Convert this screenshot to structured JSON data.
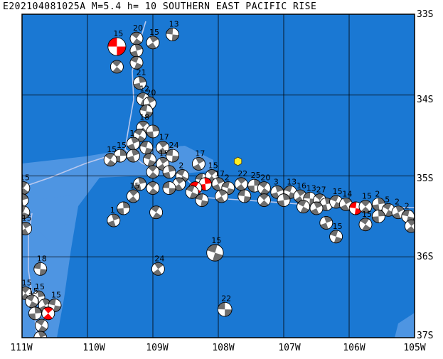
{
  "title": "E202104081025A M=5.4 h= 10 SOUTHERN EAST PACIFIC RISE",
  "lat_labels": [
    "33S",
    "34S",
    "35S",
    "36S",
    "37S"
  ],
  "lon_labels": [
    "111W",
    "110W",
    "109W",
    "108W",
    "107W",
    "106W",
    "105W"
  ],
  "colors": {
    "ocean": "#1a78d3",
    "shallow": "#4e95e2",
    "grid": "#000000",
    "ridge": "#b8c8ee",
    "event": "#ffee22",
    "compression_highlight": "#ff0000",
    "compression": "#6e6e6e"
  },
  "icons": {
    "mechanism": "focal-mechanism-beachball",
    "event": "epicenter-hexagon"
  },
  "event": {
    "lon": -107.7,
    "lat": -34.82
  },
  "focal_mechanisms": [
    {
      "lon": -109.55,
      "lat": -33.4,
      "mag": "15",
      "hl": true,
      "s": 1.4
    },
    {
      "lon": -109.25,
      "lat": -33.3,
      "mag": "20"
    },
    {
      "lon": -109.25,
      "lat": -33.45,
      "mag": ""
    },
    {
      "lon": -109.25,
      "lat": -33.6,
      "mag": ""
    },
    {
      "lon": -109.0,
      "lat": -33.35,
      "mag": "15"
    },
    {
      "lon": -108.7,
      "lat": -33.25,
      "mag": "13"
    },
    {
      "lon": -109.55,
      "lat": -33.65,
      "mag": ""
    },
    {
      "lon": -109.2,
      "lat": -33.85,
      "mag": "21"
    },
    {
      "lon": -109.15,
      "lat": -34.05,
      "mag": "12"
    },
    {
      "lon": -109.05,
      "lat": -34.1,
      "mag": "20"
    },
    {
      "lon": -109.1,
      "lat": -34.2,
      "mag": ""
    },
    {
      "lon": -109.15,
      "lat": -34.4,
      "mag": "18"
    },
    {
      "lon": -109.0,
      "lat": -34.45,
      "mag": ""
    },
    {
      "lon": -109.2,
      "lat": -34.5,
      "mag": ""
    },
    {
      "lon": -109.3,
      "lat": -34.6,
      "mag": "1"
    },
    {
      "lon": -109.1,
      "lat": -34.65,
      "mag": ""
    },
    {
      "lon": -108.85,
      "lat": -34.65,
      "mag": "17"
    },
    {
      "lon": -109.5,
      "lat": -34.75,
      "mag": "15"
    },
    {
      "lon": -109.65,
      "lat": -34.8,
      "mag": "15"
    },
    {
      "lon": -109.3,
      "lat": -34.75,
      "mag": ""
    },
    {
      "lon": -109.05,
      "lat": -34.8,
      "mag": ""
    },
    {
      "lon": -108.85,
      "lat": -34.85,
      "mag": "15"
    },
    {
      "lon": -108.7,
      "lat": -34.75,
      "mag": "24"
    },
    {
      "lon": -109.0,
      "lat": -34.95,
      "mag": ""
    },
    {
      "lon": -108.75,
      "lat": -34.95,
      "mag": ""
    },
    {
      "lon": -108.55,
      "lat": -35.0,
      "mag": "2"
    },
    {
      "lon": -108.3,
      "lat": -34.85,
      "mag": "17"
    },
    {
      "lon": -108.25,
      "lat": -35.05,
      "mag": ""
    },
    {
      "lon": -108.1,
      "lat": -35.0,
      "mag": "15"
    },
    {
      "lon": -108.2,
      "lat": -35.1,
      "mag": "",
      "hl": true
    },
    {
      "lon": -108.35,
      "lat": -35.15,
      "mag": "",
      "hl": true
    },
    {
      "lon": -108.0,
      "lat": -35.1,
      "mag": "17"
    },
    {
      "lon": -107.85,
      "lat": -35.15,
      "mag": "2"
    },
    {
      "lon": -107.65,
      "lat": -35.1,
      "mag": "22"
    },
    {
      "lon": -107.45,
      "lat": -35.12,
      "mag": "25"
    },
    {
      "lon": -107.3,
      "lat": -35.15,
      "mag": "20"
    },
    {
      "lon": -107.1,
      "lat": -35.2,
      "mag": "3"
    },
    {
      "lon": -106.9,
      "lat": -35.2,
      "mag": "13"
    },
    {
      "lon": -106.75,
      "lat": -35.25,
      "mag": "16"
    },
    {
      "lon": -106.6,
      "lat": -35.28,
      "mag": "13"
    },
    {
      "lon": -106.45,
      "lat": -35.3,
      "mag": "27"
    },
    {
      "lon": -106.35,
      "lat": -35.35,
      "mag": ""
    },
    {
      "lon": -106.2,
      "lat": -35.32,
      "mag": "15"
    },
    {
      "lon": -106.05,
      "lat": -35.35,
      "mag": "14"
    },
    {
      "lon": -105.9,
      "lat": -35.4,
      "mag": "",
      "hl": true
    },
    {
      "lon": -105.75,
      "lat": -35.38,
      "mag": "15"
    },
    {
      "lon": -105.55,
      "lat": -35.35,
      "mag": "2"
    },
    {
      "lon": -105.4,
      "lat": -35.42,
      "mag": "5"
    },
    {
      "lon": -105.25,
      "lat": -35.45,
      "mag": "2"
    },
    {
      "lon": -105.1,
      "lat": -35.5,
      "mag": "2"
    },
    {
      "lon": -105.05,
      "lat": -35.62,
      "mag": ""
    },
    {
      "lon": -105.55,
      "lat": -35.5,
      "mag": ""
    },
    {
      "lon": -105.75,
      "lat": -35.6,
      "mag": "15"
    },
    {
      "lon": -106.35,
      "lat": -35.58,
      "mag": ""
    },
    {
      "lon": -106.2,
      "lat": -35.75,
      "mag": "15"
    },
    {
      "lon": -108.6,
      "lat": -35.1,
      "mag": ""
    },
    {
      "lon": -108.75,
      "lat": -35.15,
      "mag": ""
    },
    {
      "lon": -109.0,
      "lat": -35.15,
      "mag": ""
    },
    {
      "lon": -109.2,
      "lat": -35.1,
      "mag": ""
    },
    {
      "lon": -108.4,
      "lat": -35.2,
      "mag": ""
    },
    {
      "lon": -107.95,
      "lat": -35.25,
      "mag": ""
    },
    {
      "lon": -107.6,
      "lat": -35.25,
      "mag": ""
    },
    {
      "lon": -107.3,
      "lat": -35.3,
      "mag": ""
    },
    {
      "lon": -107.0,
      "lat": -35.3,
      "mag": ""
    },
    {
      "lon": -106.7,
      "lat": -35.38,
      "mag": ""
    },
    {
      "lon": -106.5,
      "lat": -35.4,
      "mag": ""
    },
    {
      "lon": -108.25,
      "lat": -35.3,
      "mag": ""
    },
    {
      "lon": -109.3,
      "lat": -35.25,
      "mag": "15"
    },
    {
      "lon": -109.45,
      "lat": -35.4,
      "mag": ""
    },
    {
      "lon": -108.95,
      "lat": -35.45,
      "mag": ""
    },
    {
      "lon": -109.6,
      "lat": -35.55,
      "mag": "1"
    },
    {
      "lon": -108.05,
      "lat": -35.95,
      "mag": "15",
      "s": 1.3
    },
    {
      "lon": -108.92,
      "lat": -36.15,
      "mag": "24"
    },
    {
      "lon": -107.9,
      "lat": -36.65,
      "mag": "22",
      "s": 1.1
    },
    {
      "lon": -110.98,
      "lat": -35.15,
      "mag": "15"
    },
    {
      "lon": -111.0,
      "lat": -35.3,
      "mag": ""
    },
    {
      "lon": -110.98,
      "lat": -35.45,
      "mag": ""
    },
    {
      "lon": -110.95,
      "lat": -35.65,
      "mag": "15"
    },
    {
      "lon": -110.72,
      "lat": -36.15,
      "mag": "18"
    },
    {
      "lon": -110.95,
      "lat": -36.45,
      "mag": "15"
    },
    {
      "lon": -110.75,
      "lat": -36.5,
      "mag": "15"
    },
    {
      "lon": -110.85,
      "lat": -36.55,
      "mag": "15"
    },
    {
      "lon": -110.65,
      "lat": -36.6,
      "mag": ""
    },
    {
      "lon": -110.5,
      "lat": -36.6,
      "mag": "15"
    },
    {
      "lon": -110.6,
      "lat": -36.7,
      "mag": "",
      "hl": true
    },
    {
      "lon": -110.8,
      "lat": -36.7,
      "mag": ""
    },
    {
      "lon": -110.7,
      "lat": -36.85,
      "mag": ""
    },
    {
      "lon": -110.72,
      "lat": -37.0,
      "mag": ""
    }
  ]
}
